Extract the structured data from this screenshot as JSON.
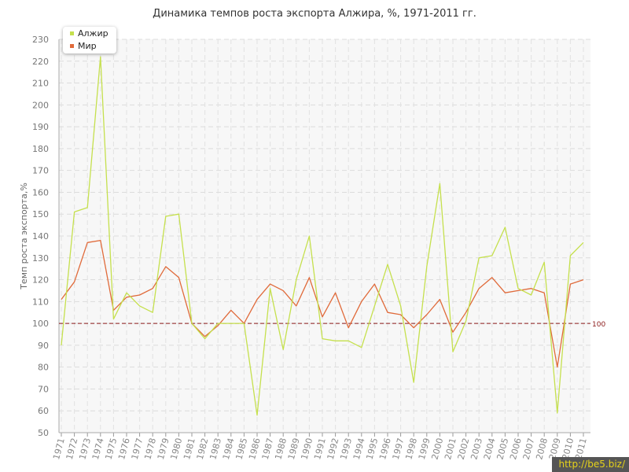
{
  "chart_data": {
    "type": "line",
    "title": "Динамика темпов роста экспорта Алжира, %, 1971-2011 гг.",
    "ylabel": "Темп роста экспорта,%",
    "xlabel": "",
    "ylim": [
      50,
      230
    ],
    "yticks": [
      50,
      60,
      70,
      80,
      90,
      100,
      110,
      120,
      130,
      140,
      150,
      160,
      170,
      180,
      190,
      200,
      210,
      220,
      230
    ],
    "grid": true,
    "legend_position": "top-left",
    "categories": [
      "1971",
      "1972",
      "1973",
      "1974",
      "1975",
      "1976",
      "1977",
      "1978",
      "1979",
      "1980",
      "1981",
      "1982",
      "1983",
      "1984",
      "1985",
      "1986",
      "1987",
      "1988",
      "1989",
      "1990",
      "1991",
      "1992",
      "1993",
      "1994",
      "1995",
      "1996",
      "1997",
      "1998",
      "1999",
      "2000",
      "2001",
      "2002",
      "2003",
      "2004",
      "2005",
      "2006",
      "2007",
      "2008",
      "2009",
      "2010",
      "2011"
    ],
    "series": [
      {
        "name": "Алжир",
        "color": "#c5e04d",
        "values": [
          90,
          151,
          153,
          222,
          102,
          114,
          108,
          105,
          149,
          150,
          100,
          93,
          100,
          100,
          100,
          58,
          116,
          88,
          120,
          140,
          93,
          92,
          92,
          89,
          108,
          127,
          108,
          73,
          126,
          164,
          87,
          101,
          130,
          131,
          144,
          116,
          113,
          128,
          59,
          131,
          137
        ]
      },
      {
        "name": "Мир",
        "color": "#e06a3a",
        "values": [
          111,
          119,
          137,
          138,
          106,
          112,
          113,
          116,
          126,
          121,
          100,
          94,
          99,
          106,
          100,
          111,
          118,
          115,
          108,
          121,
          103,
          114,
          98,
          110,
          118,
          105,
          104,
          98,
          104,
          111,
          96,
          105,
          116,
          121,
          114,
          115,
          116,
          114,
          80,
          118,
          120
        ]
      }
    ],
    "reference_line": {
      "value": 100,
      "label": "100",
      "color": "#8b1a1a"
    }
  },
  "watermark": "http://be5.biz/"
}
